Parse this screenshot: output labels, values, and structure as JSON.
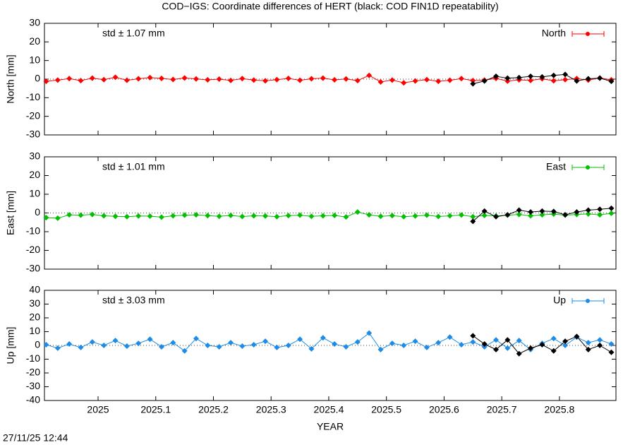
{
  "title": "COD−IGS: Coordinate differences of HERT (black: COD FIN1D repeatability)",
  "timestamp": "27/11/25 12:44",
  "chart_data": [
    {
      "type": "line",
      "ylabel": "North [mm]",
      "annotation": "std ± 1.07 mm",
      "x": [
        2024.91,
        2024.93,
        2024.95,
        2024.97,
        2024.99,
        2025.01,
        2025.03,
        2025.05,
        2025.07,
        2025.09,
        2025.11,
        2025.13,
        2025.15,
        2025.17,
        2025.19,
        2025.21,
        2025.23,
        2025.25,
        2025.27,
        2025.29,
        2025.31,
        2025.33,
        2025.35,
        2025.37,
        2025.39,
        2025.41,
        2025.43,
        2025.45,
        2025.47,
        2025.49,
        2025.51,
        2025.53,
        2025.55,
        2025.57,
        2025.59,
        2025.61,
        2025.63,
        2025.65,
        2025.67,
        2025.69,
        2025.71,
        2025.73,
        2025.75,
        2025.77,
        2025.79,
        2025.81,
        2025.83,
        2025.85,
        2025.87,
        2025.89
      ],
      "series": [
        {
          "name": "North",
          "color": "#ff0000",
          "values": [
            -1.2,
            -0.5,
            0.3,
            -0.8,
            0.5,
            -0.3,
            1.0,
            -0.6,
            0.2,
            0.8,
            0.4,
            -0.2,
            0.6,
            0.1,
            -0.4,
            0.0,
            -0.7,
            0.3,
            -0.5,
            -0.9,
            -0.3,
            0.4,
            -0.6,
            0.2,
            0.5,
            -0.4,
            0.1,
            -0.8,
            2.0,
            -1.5,
            -0.5,
            -2.0,
            -1.0,
            -0.3,
            -1.2,
            -0.6,
            0.3,
            -0.8,
            -0.5,
            0.4,
            -1.1,
            -0.4,
            -0.7,
            0.2,
            -0.9,
            -0.3,
            0.3,
            -0.5,
            0.6,
            -0.4
          ]
        },
        {
          "color": "#000000",
          "values": [
            null,
            null,
            null,
            null,
            null,
            null,
            null,
            null,
            null,
            null,
            null,
            null,
            null,
            null,
            null,
            null,
            null,
            null,
            null,
            null,
            null,
            null,
            null,
            null,
            null,
            null,
            null,
            null,
            null,
            null,
            null,
            null,
            null,
            null,
            null,
            null,
            null,
            -2.5,
            -1.0,
            1.5,
            0.5,
            0.8,
            1.5,
            1.2,
            2.0,
            2.5,
            -1.0,
            0.2,
            0.5,
            -1.2
          ]
        }
      ],
      "xlim": [
        2024.907,
        2025.898
      ],
      "xticks": [
        2025,
        2025.1,
        2025.2,
        2025.3,
        2025.4,
        2025.5,
        2025.6,
        2025.7,
        2025.8
      ],
      "ylim": [
        -30,
        30
      ],
      "yticks": [
        -30,
        -20,
        -10,
        0,
        10,
        20,
        30
      ]
    },
    {
      "type": "line",
      "ylabel": "East [mm]",
      "annotation": "std ± 1.01 mm",
      "x": [
        2024.91,
        2024.93,
        2024.95,
        2024.97,
        2024.99,
        2025.01,
        2025.03,
        2025.05,
        2025.07,
        2025.09,
        2025.11,
        2025.13,
        2025.15,
        2025.17,
        2025.19,
        2025.21,
        2025.23,
        2025.25,
        2025.27,
        2025.29,
        2025.31,
        2025.33,
        2025.35,
        2025.37,
        2025.39,
        2025.41,
        2025.43,
        2025.45,
        2025.47,
        2025.49,
        2025.51,
        2025.53,
        2025.55,
        2025.57,
        2025.59,
        2025.61,
        2025.63,
        2025.65,
        2025.67,
        2025.69,
        2025.71,
        2025.73,
        2025.75,
        2025.77,
        2025.79,
        2025.81,
        2025.83,
        2025.85,
        2025.87,
        2025.89
      ],
      "series": [
        {
          "name": "East",
          "color": "#00c000",
          "values": [
            -2.5,
            -2.8,
            -1.0,
            -1.2,
            -0.8,
            -1.5,
            -1.8,
            -2.0,
            -1.6,
            -1.7,
            -2.2,
            -1.5,
            -1.2,
            -1.0,
            -1.4,
            -1.8,
            -1.3,
            -1.9,
            -1.5,
            -1.6,
            -2.0,
            -1.4,
            -1.2,
            -1.8,
            -1.5,
            -1.3,
            -2.1,
            0.5,
            -1.0,
            -1.8,
            -1.4,
            -2.0,
            -1.6,
            -1.2,
            -1.9,
            -1.5,
            -1.1,
            -2.0,
            -1.3,
            -1.6,
            -1.2,
            -0.8,
            -1.5,
            -1.0,
            -0.6,
            -1.2,
            -0.8,
            -0.5,
            -1.0,
            -0.2
          ]
        },
        {
          "color": "#000000",
          "values": [
            null,
            null,
            null,
            null,
            null,
            null,
            null,
            null,
            null,
            null,
            null,
            null,
            null,
            null,
            null,
            null,
            null,
            null,
            null,
            null,
            null,
            null,
            null,
            null,
            null,
            null,
            null,
            null,
            null,
            null,
            null,
            null,
            null,
            null,
            null,
            null,
            null,
            -4.5,
            1.0,
            -2.0,
            -1.0,
            1.5,
            0.5,
            1.0,
            0.8,
            -1.0,
            0.5,
            1.5,
            2.0,
            2.5
          ]
        }
      ],
      "xlim": [
        2024.907,
        2025.898
      ],
      "xticks": [
        2025,
        2025.1,
        2025.2,
        2025.3,
        2025.4,
        2025.5,
        2025.6,
        2025.7,
        2025.8
      ],
      "ylim": [
        -30,
        30
      ],
      "yticks": [
        -30,
        -20,
        -10,
        0,
        10,
        20,
        30
      ]
    },
    {
      "type": "line",
      "ylabel": "Up [mm]",
      "xlabel": "YEAR",
      "annotation": "std ± 3.03 mm",
      "x": [
        2024.91,
        2024.93,
        2024.95,
        2024.97,
        2024.99,
        2025.01,
        2025.03,
        2025.05,
        2025.07,
        2025.09,
        2025.11,
        2025.13,
        2025.15,
        2025.17,
        2025.19,
        2025.21,
        2025.23,
        2025.25,
        2025.27,
        2025.29,
        2025.31,
        2025.33,
        2025.35,
        2025.37,
        2025.39,
        2025.41,
        2025.43,
        2025.45,
        2025.47,
        2025.49,
        2025.51,
        2025.53,
        2025.55,
        2025.57,
        2025.59,
        2025.61,
        2025.63,
        2025.65,
        2025.67,
        2025.69,
        2025.71,
        2025.73,
        2025.75,
        2025.77,
        2025.79,
        2025.81,
        2025.83,
        2025.85,
        2025.87,
        2025.89
      ],
      "series": [
        {
          "name": "Up",
          "color": "#1e8ce6",
          "values": [
            0.5,
            -2.0,
            1.0,
            -1.5,
            2.5,
            0.0,
            3.5,
            -0.5,
            1.5,
            4.5,
            -1.0,
            2.0,
            -4.0,
            5.0,
            0.0,
            -1.0,
            2.0,
            -0.5,
            0.5,
            3.0,
            -1.5,
            0.0,
            4.5,
            -2.5,
            5.5,
            1.0,
            -1.0,
            2.5,
            9.0,
            -3.0,
            1.5,
            0.0,
            3.0,
            -1.5,
            2.0,
            6.0,
            0.5,
            2.5,
            -1.0,
            4.0,
            -2.0,
            3.5,
            -3.0,
            1.5,
            5.0,
            0.0,
            6.0,
            2.0,
            4.0,
            1.0
          ]
        },
        {
          "color": "#000000",
          "values": [
            null,
            null,
            null,
            null,
            null,
            null,
            null,
            null,
            null,
            null,
            null,
            null,
            null,
            null,
            null,
            null,
            null,
            null,
            null,
            null,
            null,
            null,
            null,
            null,
            null,
            null,
            null,
            null,
            null,
            null,
            null,
            null,
            null,
            null,
            null,
            null,
            null,
            7.0,
            1.0,
            -3.0,
            4.0,
            -6.0,
            -2.0,
            0.5,
            -4.0,
            3.0,
            6.5,
            -3.0,
            0.0,
            -5.0
          ]
        }
      ],
      "xlim": [
        2024.907,
        2025.898
      ],
      "xticks": [
        2025,
        2025.1,
        2025.2,
        2025.3,
        2025.4,
        2025.5,
        2025.6,
        2025.7,
        2025.8
      ],
      "ylim": [
        -40,
        40
      ],
      "yticks": [
        -40,
        -30,
        -20,
        -10,
        0,
        10,
        20,
        30,
        40
      ]
    }
  ]
}
